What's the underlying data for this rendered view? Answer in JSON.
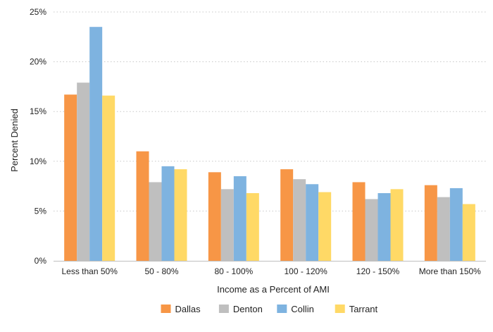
{
  "chart_data": {
    "type": "bar",
    "title": "",
    "xlabel": "Income as a Percent of AMI",
    "ylabel": "Percent Denied",
    "ylim": [
      0,
      0.25
    ],
    "yticks": [
      {
        "value": 0,
        "label": "0%"
      },
      {
        "value": 0.05,
        "label": "5%"
      },
      {
        "value": 0.1,
        "label": "10%"
      },
      {
        "value": 0.15,
        "label": "15%"
      },
      {
        "value": 0.2,
        "label": "20%"
      },
      {
        "value": 0.25,
        "label": "25%"
      }
    ],
    "grid": "horizontal dotted",
    "legend_position": "bottom-center",
    "categories": [
      "Less than 50%",
      "50 - 80%",
      "80 - 100%",
      "100 - 120%",
      "120 - 150%",
      "More than 150%"
    ],
    "series": [
      {
        "name": "Dallas",
        "color": "#F79646",
        "values": [
          0.167,
          0.11,
          0.089,
          0.092,
          0.079,
          0.076
        ]
      },
      {
        "name": "Denton",
        "color": "#BFBFBF",
        "values": [
          0.179,
          0.079,
          0.072,
          0.082,
          0.062,
          0.064
        ]
      },
      {
        "name": "Collin",
        "color": "#7EB3E0",
        "values": [
          0.235,
          0.095,
          0.085,
          0.077,
          0.068,
          0.073
        ]
      },
      {
        "name": "Tarrant",
        "color": "#FFD966",
        "values": [
          0.166,
          0.092,
          0.068,
          0.069,
          0.072,
          0.057
        ]
      }
    ]
  }
}
